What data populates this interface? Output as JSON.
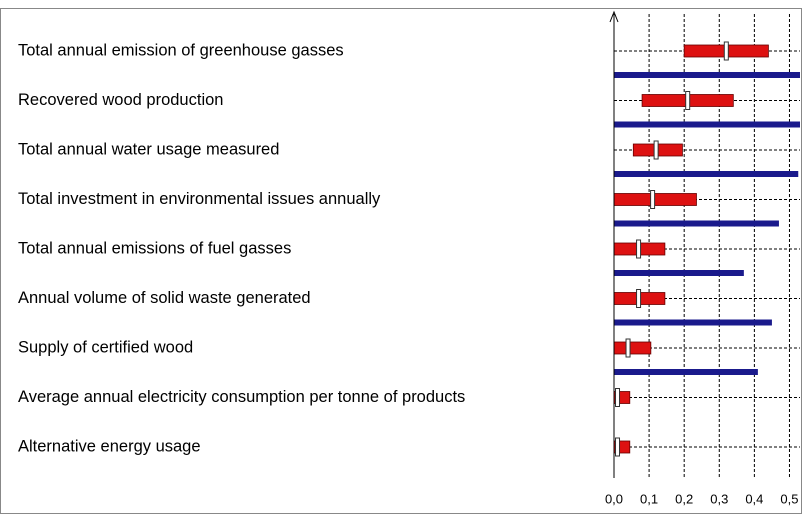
{
  "chart_data": {
    "type": "interval-bar",
    "categories": [
      "Total annual emission of greenhouse gasses",
      "Recovered wood production",
      "Total annual water usage measured",
      "Total investment in environmental issues annually",
      "Total annual emissions of fuel gasses",
      "Annual volume of solid waste generated",
      "Supply of certified wood",
      "Average annual electricity consumption per tonne of products",
      "Alternative energy usage"
    ],
    "low": [
      0.2,
      0.08,
      0.055,
      0,
      0,
      0,
      0,
      0,
      0
    ],
    "high": [
      0.44,
      0.34,
      0.195,
      0.235,
      0.145,
      0.145,
      0.105,
      0.045,
      0.045
    ],
    "mid": [
      0.32,
      0.21,
      0.12,
      0.11,
      0.07,
      0.07,
      0.04,
      0.01,
      0.01
    ],
    "bar_values": [
      0.56,
      0.56,
      0.525,
      0.47,
      0.37,
      0.45,
      0.41,
      null,
      null
    ],
    "range_color": "#dd1111",
    "bar_color": "#1a1a8c",
    "xlim": [
      0,
      0.53
    ],
    "xticks": [
      {
        "value": 0,
        "label": "0,0"
      },
      {
        "value": 0.1,
        "label": "0,1"
      },
      {
        "value": 0.2,
        "label": "0,2"
      },
      {
        "value": 0.3,
        "label": "0,3"
      },
      {
        "value": 0.4,
        "label": "0,4"
      },
      {
        "value": 0.5,
        "label": "0,5"
      }
    ],
    "grid": true
  }
}
